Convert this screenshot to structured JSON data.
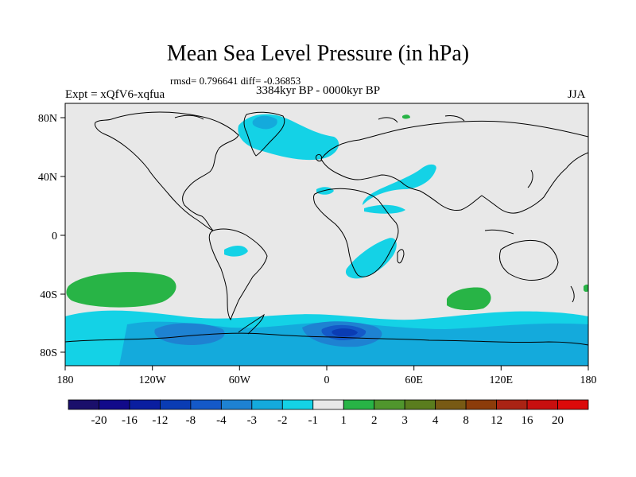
{
  "title": "Mean Sea Level Pressure (in hPa)",
  "stats": "rmsd= 0.796641 diff= -0.36853",
  "experiment": "Expt = xQfV6-xqfua",
  "period": "3384kyr BP - 0000kyr BP",
  "season": "JJA",
  "y_ticks": [
    "80N",
    "40N",
    "0",
    "40S",
    "80S"
  ],
  "x_ticks": [
    "180",
    "120W",
    "60W",
    "0",
    "60E",
    "120E",
    "180"
  ],
  "legend": {
    "labels": [
      "-20",
      "-16",
      "-12",
      "-8",
      "-4",
      "-3",
      "-2",
      "-1",
      "1",
      "2",
      "3",
      "4",
      "8",
      "12",
      "16",
      "20"
    ],
    "colors": [
      "#1a0f6b",
      "#120a8a",
      "#0a1ea0",
      "#0a3cb4",
      "#1459c8",
      "#1e82d2",
      "#14aadc",
      "#14d2e6",
      "#e8e8e8",
      "#28b446",
      "#50962d",
      "#5a7d1e",
      "#785a14",
      "#8c3c0a",
      "#aa2314",
      "#c80f0f",
      "#dc0a0a"
    ]
  },
  "colors": {
    "background": "#e8e8e8",
    "neg_light": "#14d2e6",
    "neg_mid": "#14aadc",
    "neg_strong": "#1e82d2",
    "neg_deep": "#1459c8",
    "neg_deeper": "#0a3cb4",
    "pos_light": "#28b446",
    "coast": "#000000"
  }
}
